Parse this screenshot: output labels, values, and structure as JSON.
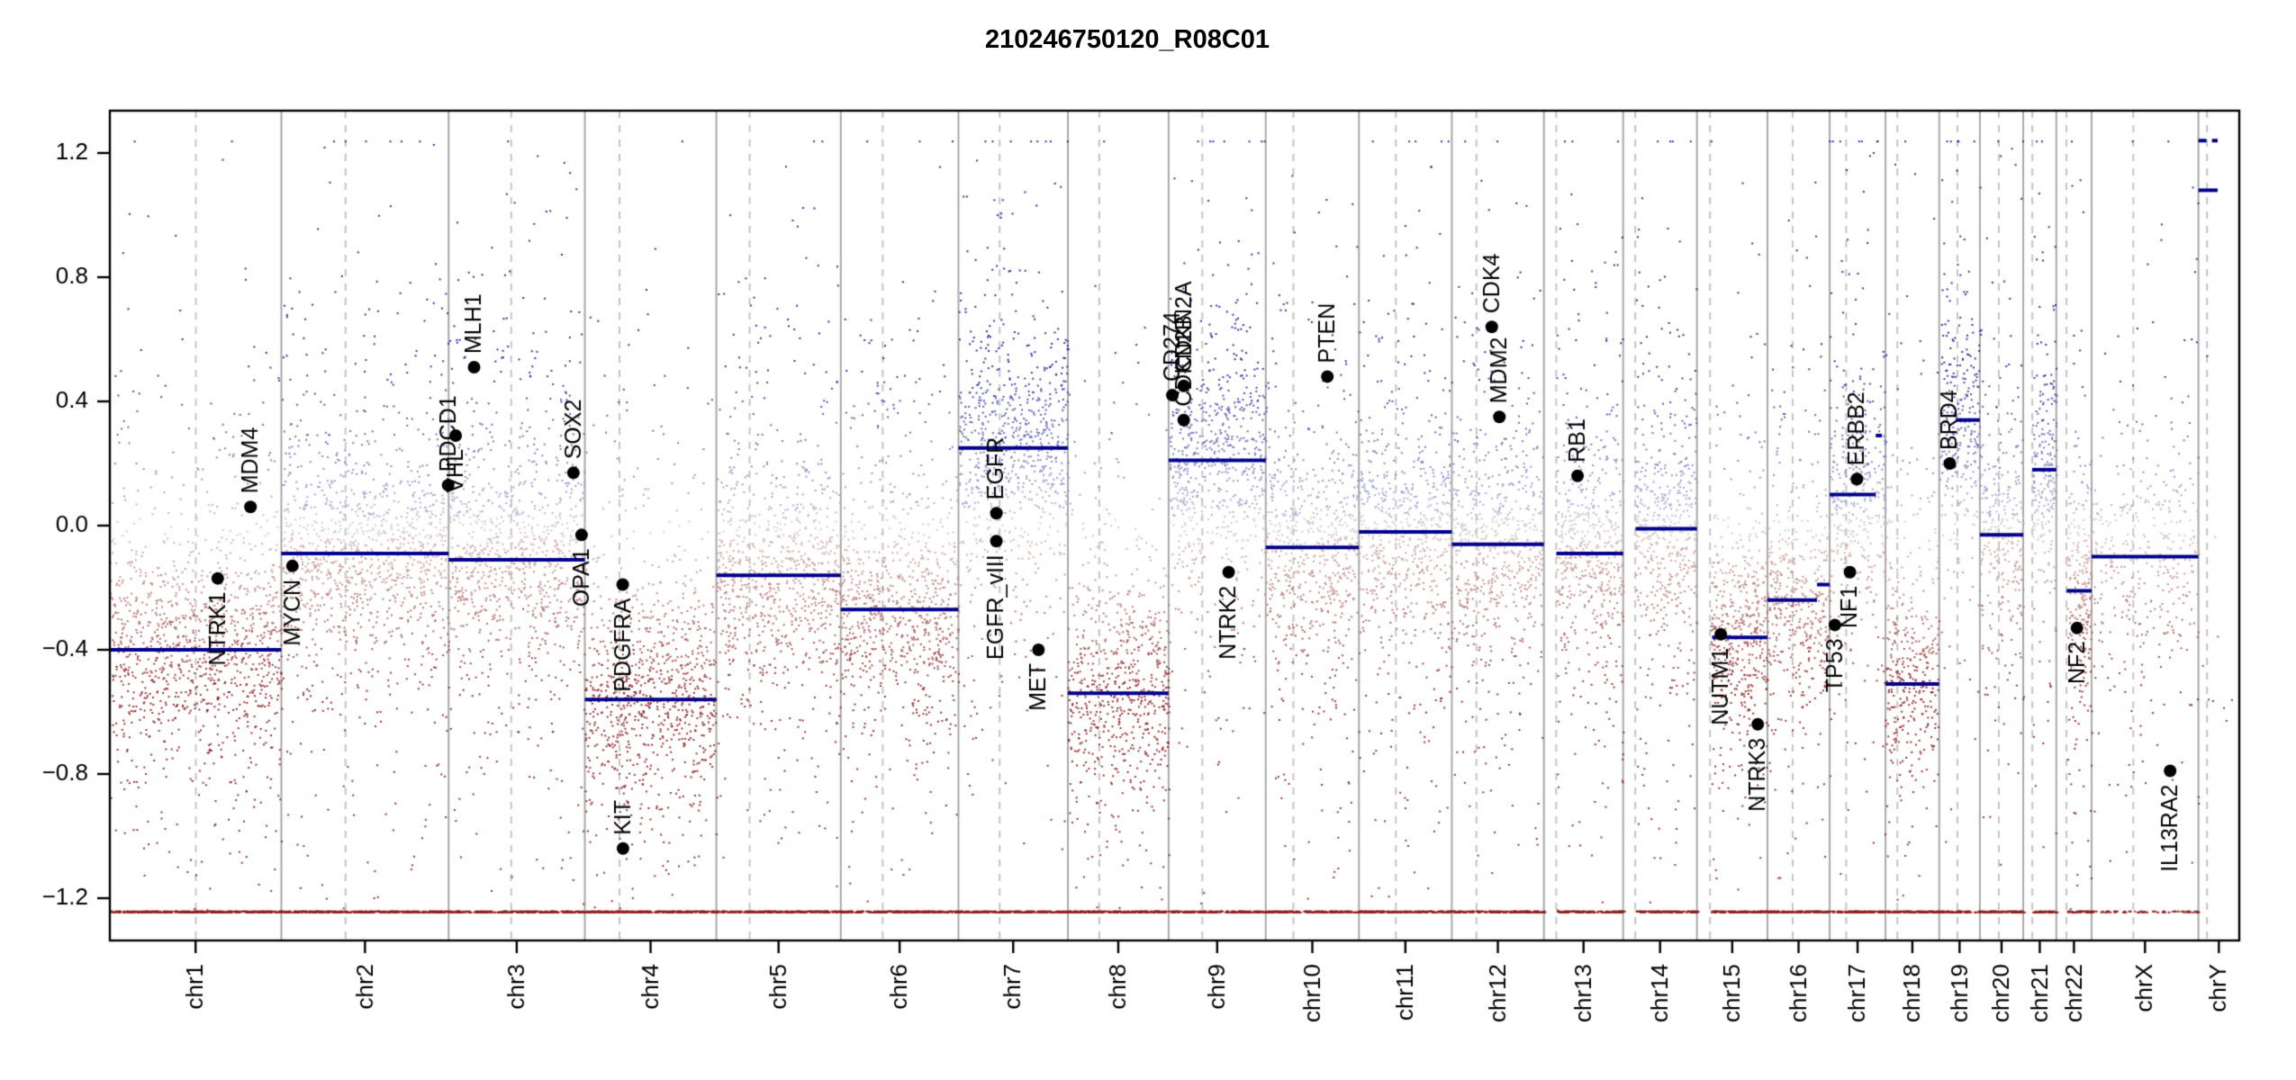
{
  "title": "210246750120_R08C01",
  "chart_data": {
    "type": "scatter",
    "title": "210246750120_R08C01",
    "xlabel": "",
    "ylabel": "",
    "legend": "none",
    "grid": false,
    "y_ticks": [
      {
        "value": 1.2,
        "label": "1.2"
      },
      {
        "value": 0.8,
        "label": "0.8"
      },
      {
        "value": 0.4,
        "label": "0.4"
      },
      {
        "value": 0.0,
        "label": "0.0"
      },
      {
        "value": -0.4,
        "label": "−0.4"
      },
      {
        "value": -0.8,
        "label": "−0.8"
      },
      {
        "value": -1.2,
        "label": "−1.2"
      }
    ],
    "ylim": [
      -1.34,
      1.34
    ],
    "clip_value": 1.24,
    "colors": {
      "segment": "#00008b",
      "point_high": "#1e1e9e",
      "point_mid_high": "#b4b4d8",
      "point_neutral": "#c9c9c9",
      "point_mid_low": "#d8b4b4",
      "point_low": "#8f1f1f",
      "gene_dot": "#000000",
      "boundary": "#a8a8a8",
      "centromere": "#c4c4c4",
      "axis": "#000000"
    },
    "density_per_mb_default": 5.0,
    "chromosomes": [
      {
        "name": "chr1",
        "length_mb": 249.3,
        "centromere_mb": 125.0,
        "start_gap_mb": 0,
        "level": -0.4,
        "density_per_mb": 5.0,
        "clip_row": true
      },
      {
        "name": "chr2",
        "length_mb": 243.2,
        "centromere_mb": 93.3,
        "start_gap_mb": 0,
        "level": -0.09,
        "density_per_mb": 5.0,
        "clip_row": true
      },
      {
        "name": "chr3",
        "length_mb": 198.0,
        "centromere_mb": 91.0,
        "start_gap_mb": 0,
        "level": -0.11,
        "density_per_mb": 5.0,
        "clip_row": true
      },
      {
        "name": "chr4",
        "length_mb": 191.2,
        "centromere_mb": 50.4,
        "start_gap_mb": 0,
        "level": -0.56,
        "density_per_mb": 5.0,
        "clip_row": true
      },
      {
        "name": "chr5",
        "length_mb": 180.9,
        "centromere_mb": 48.4,
        "start_gap_mb": 0,
        "level": -0.16,
        "density_per_mb": 5.0,
        "clip_row": true
      },
      {
        "name": "chr6",
        "length_mb": 171.1,
        "centromere_mb": 61.0,
        "start_gap_mb": 0,
        "level": -0.27,
        "density_per_mb": 5.0,
        "clip_row": true
      },
      {
        "name": "chr7",
        "length_mb": 159.1,
        "centromere_mb": 59.9,
        "start_gap_mb": 0,
        "level": 0.25,
        "density_per_mb": 5.0,
        "clip_row": true
      },
      {
        "name": "chr8",
        "length_mb": 146.4,
        "centromere_mb": 45.6,
        "start_gap_mb": 0,
        "level": -0.54,
        "density_per_mb": 5.0,
        "clip_row": true
      },
      {
        "name": "chr9",
        "length_mb": 141.2,
        "centromere_mb": 49.0,
        "start_gap_mb": 0,
        "level": 0.21,
        "density_per_mb": 5.0,
        "clip_row": true
      },
      {
        "name": "chr10",
        "length_mb": 135.5,
        "centromere_mb": 40.2,
        "start_gap_mb": 0,
        "level": -0.07,
        "density_per_mb": 5.0,
        "clip_row": true
      },
      {
        "name": "chr11",
        "length_mb": 135.0,
        "centromere_mb": 53.7,
        "start_gap_mb": 0,
        "level": -0.02,
        "density_per_mb": 5.0,
        "clip_row": true
      },
      {
        "name": "chr12",
        "length_mb": 133.9,
        "centromere_mb": 35.8,
        "start_gap_mb": 0,
        "level": -0.06,
        "density_per_mb": 5.0,
        "clip_row": true
      },
      {
        "name": "chr13",
        "length_mb": 115.2,
        "centromere_mb": 17.9,
        "start_gap_mb": 18,
        "level": -0.09,
        "density_per_mb": 5.0,
        "clip_row": true
      },
      {
        "name": "chr14",
        "length_mb": 107.3,
        "centromere_mb": 17.6,
        "start_gap_mb": 18,
        "level": -0.01,
        "density_per_mb": 5.0,
        "clip_row": true
      },
      {
        "name": "chr15",
        "length_mb": 102.5,
        "centromere_mb": 19.0,
        "start_gap_mb": 19,
        "level": -0.36,
        "density_per_mb": 5.0,
        "clip_row": true
      },
      {
        "name": "chr16",
        "length_mb": 90.4,
        "centromere_mb": 36.6,
        "start_gap_mb": 0,
        "level": -0.24,
        "density_per_mb": 5.0,
        "clip_row": true
      },
      {
        "name": "chr17",
        "length_mb": 81.2,
        "centromere_mb": 24.0,
        "start_gap_mb": 0,
        "level": 0.1,
        "density_per_mb": 5.0,
        "clip_row": true
      },
      {
        "name": "chr18",
        "length_mb": 78.1,
        "centromere_mb": 17.2,
        "start_gap_mb": 0,
        "level": -0.51,
        "density_per_mb": 5.0,
        "clip_row": true
      },
      {
        "name": "chr19",
        "length_mb": 59.1,
        "centromere_mb": 26.5,
        "start_gap_mb": 0,
        "level": 0.3,
        "density_per_mb": 5.0,
        "clip_row": true
      },
      {
        "name": "chr20",
        "length_mb": 63.0,
        "centromere_mb": 27.5,
        "start_gap_mb": 0,
        "level": -0.03,
        "density_per_mb": 5.0,
        "clip_row": true
      },
      {
        "name": "chr21",
        "length_mb": 48.1,
        "centromere_mb": 13.2,
        "start_gap_mb": 13,
        "level": 0.18,
        "density_per_mb": 5.0,
        "clip_row": true
      },
      {
        "name": "chr22",
        "length_mb": 51.3,
        "centromere_mb": 14.7,
        "start_gap_mb": 15,
        "level": -0.21,
        "density_per_mb": 5.0,
        "clip_row": true
      },
      {
        "name": "chrX",
        "length_mb": 155.3,
        "centromere_mb": 60.6,
        "start_gap_mb": 0,
        "level": -0.1,
        "density_per_mb": 2.6,
        "clip_row": true,
        "clip_row_sparse": true
      },
      {
        "name": "chrY",
        "length_mb": 59.4,
        "centromere_mb": 12.5,
        "start_gap_mb": 0,
        "level": null,
        "density_per_mb": 0.15,
        "clip_row": false
      }
    ],
    "segments": [
      {
        "chrom": "chr1",
        "start_mb": 0,
        "end_mb": 249.3,
        "value": -0.4
      },
      {
        "chrom": "chr2",
        "start_mb": 0,
        "end_mb": 243.2,
        "value": -0.09
      },
      {
        "chrom": "chr3",
        "start_mb": 0,
        "end_mb": 198.0,
        "value": -0.11
      },
      {
        "chrom": "chr4",
        "start_mb": 0,
        "end_mb": 191.2,
        "value": -0.56
      },
      {
        "chrom": "chr5",
        "start_mb": 0,
        "end_mb": 180.9,
        "value": -0.16
      },
      {
        "chrom": "chr6",
        "start_mb": 0,
        "end_mb": 171.1,
        "value": -0.27
      },
      {
        "chrom": "chr7",
        "start_mb": 0,
        "end_mb": 159.1,
        "value": 0.25
      },
      {
        "chrom": "chr8",
        "start_mb": 0,
        "end_mb": 146.4,
        "value": -0.54
      },
      {
        "chrom": "chr9",
        "start_mb": 0,
        "end_mb": 141.2,
        "value": 0.21
      },
      {
        "chrom": "chr10",
        "start_mb": 0,
        "end_mb": 135.5,
        "value": -0.07
      },
      {
        "chrom": "chr11",
        "start_mb": 0,
        "end_mb": 135.0,
        "value": -0.02
      },
      {
        "chrom": "chr12",
        "start_mb": 0,
        "end_mb": 133.9,
        "value": -0.06
      },
      {
        "chrom": "chr13",
        "start_mb": 18,
        "end_mb": 115.2,
        "value": -0.09
      },
      {
        "chrom": "chr14",
        "start_mb": 18,
        "end_mb": 107.3,
        "value": -0.01
      },
      {
        "chrom": "chr15",
        "start_mb": 22,
        "end_mb": 102.5,
        "value": -0.36
      },
      {
        "chrom": "chr16",
        "start_mb": 0,
        "end_mb": 72,
        "value": -0.24
      },
      {
        "chrom": "chr16",
        "start_mb": 72,
        "end_mb": 90.4,
        "value": -0.19
      },
      {
        "chrom": "chr17",
        "start_mb": 0,
        "end_mb": 67,
        "value": 0.1
      },
      {
        "chrom": "chr17",
        "start_mb": 67,
        "end_mb": 76,
        "value": 0.29
      },
      {
        "chrom": "chr18",
        "start_mb": 0,
        "end_mb": 78.1,
        "value": -0.51
      },
      {
        "chrom": "chr19",
        "start_mb": 24,
        "end_mb": 59.1,
        "value": 0.34
      },
      {
        "chrom": "chr20",
        "start_mb": 0,
        "end_mb": 63.0,
        "value": -0.03
      },
      {
        "chrom": "chr21",
        "start_mb": 13,
        "end_mb": 48.1,
        "value": 0.18
      },
      {
        "chrom": "chr22",
        "start_mb": 15,
        "end_mb": 51.3,
        "value": -0.21
      },
      {
        "chrom": "chrX",
        "start_mb": 0,
        "end_mb": 155.3,
        "value": -0.1
      },
      {
        "chrom": "chrY",
        "start_mb": 0,
        "end_mb": 28,
        "value": 1.24,
        "dashed": true
      },
      {
        "chrom": "chrY",
        "start_mb": 0,
        "end_mb": 28,
        "value": 1.08
      }
    ],
    "annotations": [
      {
        "gene": "NTRK1",
        "chrom": "chr1",
        "mb": 156.8,
        "value": -0.17,
        "label_side": "below"
      },
      {
        "gene": "MDM4",
        "chrom": "chr1",
        "mb": 204.5,
        "value": 0.06,
        "label_side": "above"
      },
      {
        "gene": "MYCN",
        "chrom": "chr2",
        "mb": 16.1,
        "value": -0.13,
        "label_side": "below"
      },
      {
        "gene": "PDCD1",
        "chrom": "chr2",
        "mb": 242.5,
        "value": 0.13,
        "label_side": "above"
      },
      {
        "gene": "VHL",
        "chrom": "chr3",
        "mb": 10.2,
        "value": 0.29,
        "label_side": "below"
      },
      {
        "gene": "MLH1",
        "chrom": "chr3",
        "mb": 37.0,
        "value": 0.51,
        "label_side": "above"
      },
      {
        "gene": "SOX2",
        "chrom": "chr3",
        "mb": 181.4,
        "value": 0.17,
        "label_side": "above"
      },
      {
        "gene": "OPA1",
        "chrom": "chr3",
        "mb": 193.3,
        "value": -0.03,
        "label_side": "below"
      },
      {
        "gene": "PDGFRA",
        "chrom": "chr4",
        "mb": 55.1,
        "value": -0.19,
        "label_side": "below"
      },
      {
        "gene": "KIT",
        "chrom": "chr4",
        "mb": 55.5,
        "value": -1.04,
        "label_side": "above"
      },
      {
        "gene": "EGFR",
        "chrom": "chr7",
        "mb": 55.1,
        "value": 0.04,
        "label_side": "above"
      },
      {
        "gene": "EGFR_vIII",
        "chrom": "chr7",
        "mb": 55.1,
        "value": -0.05,
        "label_side": "below"
      },
      {
        "gene": "MET",
        "chrom": "chr7",
        "mb": 116.3,
        "value": -0.4,
        "label_side": "below"
      },
      {
        "gene": "CD274",
        "chrom": "chr9",
        "mb": 5.5,
        "value": 0.42,
        "label_side": "above"
      },
      {
        "gene": "CDKN2A",
        "chrom": "chr9",
        "mb": 22.0,
        "value": 0.45,
        "label_side": "above"
      },
      {
        "gene": "CDKN2B",
        "chrom": "chr9",
        "mb": 22.0,
        "value": 0.34,
        "label_side": "above"
      },
      {
        "gene": "NTRK2",
        "chrom": "chr9",
        "mb": 87.3,
        "value": -0.15,
        "label_side": "below"
      },
      {
        "gene": "PTEN",
        "chrom": "chr10",
        "mb": 89.6,
        "value": 0.48,
        "label_side": "above"
      },
      {
        "gene": "CDK4",
        "chrom": "chr12",
        "mb": 58.1,
        "value": 0.64,
        "label_side": "above"
      },
      {
        "gene": "MDM2",
        "chrom": "chr12",
        "mb": 69.2,
        "value": 0.35,
        "label_side": "above"
      },
      {
        "gene": "RB1",
        "chrom": "chr13",
        "mb": 48.9,
        "value": 0.16,
        "label_side": "above"
      },
      {
        "gene": "NUTM1",
        "chrom": "chr15",
        "mb": 34.6,
        "value": -0.35,
        "label_side": "below"
      },
      {
        "gene": "NTRK3",
        "chrom": "chr15",
        "mb": 88.4,
        "value": -0.64,
        "label_side": "below"
      },
      {
        "gene": "TP53",
        "chrom": "chr17",
        "mb": 7.6,
        "value": -0.32,
        "label_side": "below"
      },
      {
        "gene": "NF1",
        "chrom": "chr17",
        "mb": 29.5,
        "value": -0.15,
        "label_side": "below"
      },
      {
        "gene": "ERBB2",
        "chrom": "chr17",
        "mb": 39.7,
        "value": 0.15,
        "label_side": "above"
      },
      {
        "gene": "BRD4",
        "chrom": "chr19",
        "mb": 15.4,
        "value": 0.2,
        "label_side": "above"
      },
      {
        "gene": "NF2",
        "chrom": "chr22",
        "mb": 30.0,
        "value": -0.33,
        "label_side": "below"
      },
      {
        "gene": "IL13RA2",
        "chrom": "chrX",
        "mb": 114.2,
        "value": -0.79,
        "label_side": "below"
      }
    ]
  }
}
